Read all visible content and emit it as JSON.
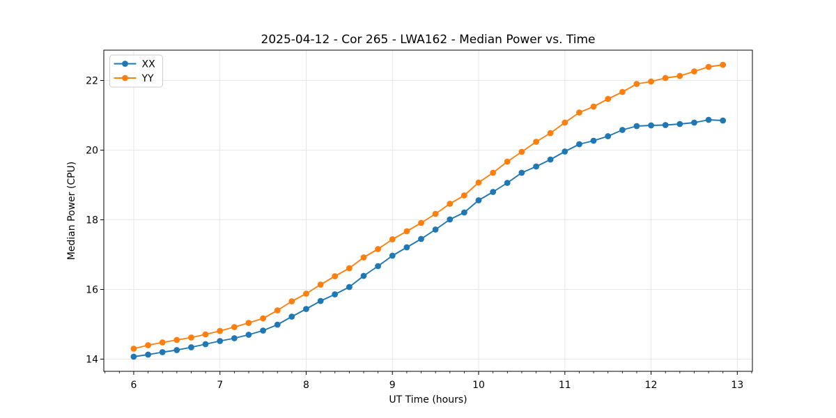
{
  "figure": {
    "background": "#ffffff",
    "grid_color": "#e6e6e6",
    "spine_color": "#000000"
  },
  "chart_data": {
    "type": "line",
    "title": "2025-04-12 - Cor 265 - LWA162 - Median Power vs. Time",
    "xlabel": "UT Time (hours)",
    "ylabel": "Median Power (CPU)",
    "x_ticks": [
      6,
      7,
      8,
      9,
      10,
      11,
      12,
      13
    ],
    "y_ticks": [
      14,
      16,
      18,
      20,
      22
    ],
    "xlim": [
      5.653,
      13.175
    ],
    "ylim": [
      13.65,
      22.87
    ],
    "x_minor_tick_step": 0.16667,
    "grid": true,
    "legend_position": "upper left",
    "x": [
      6.0,
      6.167,
      6.333,
      6.5,
      6.667,
      6.833,
      7.0,
      7.167,
      7.333,
      7.5,
      7.667,
      7.833,
      8.0,
      8.167,
      8.333,
      8.5,
      8.667,
      8.833,
      9.0,
      9.167,
      9.333,
      9.5,
      9.667,
      9.833,
      10.0,
      10.167,
      10.333,
      10.5,
      10.667,
      10.833,
      11.0,
      11.167,
      11.333,
      11.5,
      11.667,
      11.833,
      12.0,
      12.167,
      12.333,
      12.5,
      12.667,
      12.833
    ],
    "series": [
      {
        "name": "XX",
        "color": "#1f77b4",
        "marker": "circle",
        "values": [
          14.07,
          14.13,
          14.2,
          14.26,
          14.34,
          14.43,
          14.52,
          14.6,
          14.7,
          14.82,
          14.99,
          15.22,
          15.44,
          15.67,
          15.86,
          16.07,
          16.39,
          16.67,
          16.97,
          17.21,
          17.45,
          17.72,
          18.01,
          18.21,
          18.56,
          18.8,
          19.06,
          19.35,
          19.53,
          19.73,
          19.96,
          20.17,
          20.27,
          20.4,
          20.58,
          20.69,
          20.71,
          20.72,
          20.75,
          20.79,
          20.87,
          20.85
        ]
      },
      {
        "name": "YY",
        "color": "#ff7f0e",
        "marker": "circle",
        "values": [
          14.3,
          14.4,
          14.48,
          14.55,
          14.62,
          14.71,
          14.81,
          14.92,
          15.04,
          15.17,
          15.4,
          15.66,
          15.88,
          16.14,
          16.38,
          16.61,
          16.92,
          17.16,
          17.44,
          17.67,
          17.91,
          18.17,
          18.46,
          18.7,
          19.07,
          19.35,
          19.67,
          19.95,
          20.24,
          20.49,
          20.79,
          21.08,
          21.25,
          21.47,
          21.67,
          21.9,
          21.97,
          22.07,
          22.13,
          22.26,
          22.39,
          22.45
        ]
      }
    ]
  }
}
